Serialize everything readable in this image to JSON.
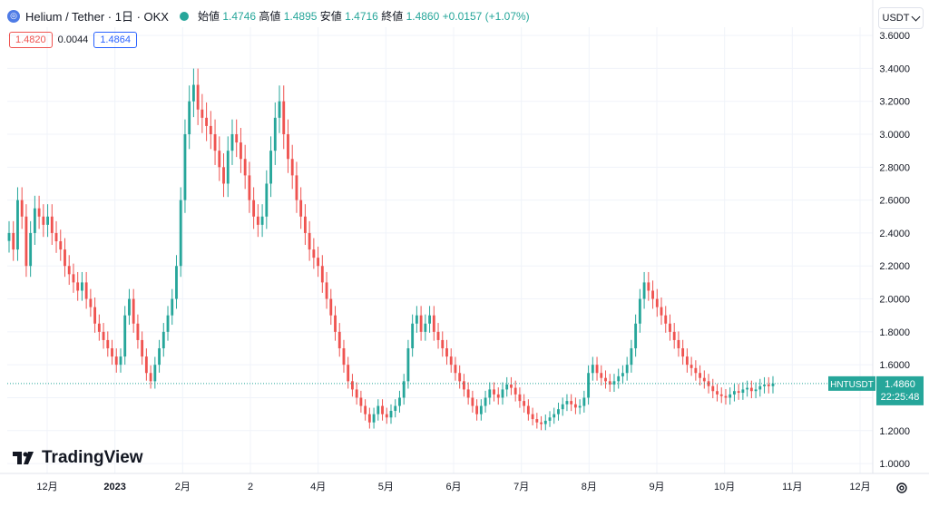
{
  "header": {
    "title": "Helium / Tether · 1日 · OKX",
    "ohlc": {
      "open_label": "始値",
      "open": "1.4746",
      "high_label": "高値",
      "high": "1.4895",
      "low_label": "安値",
      "low": "1.4716",
      "close_label": "終値",
      "close": "1.4860",
      "change": "+0.0157 (+1.07%)"
    }
  },
  "quote": {
    "bid": "1.4820",
    "spread": "0.0044",
    "ask": "1.4864"
  },
  "currency_selector": "USDT",
  "branding": "TradingView",
  "colors": {
    "up": "#26a69a",
    "down": "#ef5350",
    "grid": "#f0f3fa",
    "axis_text": "#131722",
    "price_tag": "#26a69a"
  },
  "chart_data": {
    "type": "candlestick",
    "symbol": "HNTUSDT",
    "last_price": 1.486,
    "countdown": "22:25:48",
    "y_ticks": [
      "1.0000",
      "1.2000",
      "1.4000",
      "1.6000",
      "1.8000",
      "2.0000",
      "2.2000",
      "2.4000",
      "2.6000",
      "2.8000",
      "3.0000",
      "3.2000",
      "3.4000",
      "3.6000"
    ],
    "ylim": [
      0.94,
      3.65
    ],
    "x_ticks": [
      "12月",
      "2023",
      "2月",
      "2",
      "4月",
      "5月",
      "6月",
      "7月",
      "8月",
      "9月",
      "10月",
      "11月",
      "12月"
    ],
    "close_series": [
      2.4,
      2.3,
      2.6,
      2.5,
      2.2,
      2.4,
      2.55,
      2.5,
      2.45,
      2.5,
      2.4,
      2.35,
      2.3,
      2.2,
      2.15,
      2.1,
      2.05,
      2.1,
      2.0,
      1.95,
      1.85,
      1.8,
      1.75,
      1.7,
      1.65,
      1.6,
      1.65,
      1.9,
      2.0,
      1.85,
      1.75,
      1.65,
      1.55,
      1.5,
      1.6,
      1.7,
      1.8,
      1.9,
      2.0,
      2.2,
      2.6,
      3.0,
      3.2,
      3.3,
      3.15,
      3.1,
      3.05,
      3.0,
      2.9,
      2.8,
      2.7,
      2.9,
      3.0,
      2.95,
      2.85,
      2.75,
      2.6,
      2.5,
      2.45,
      2.5,
      2.7,
      2.9,
      3.1,
      3.2,
      3.0,
      2.85,
      2.75,
      2.6,
      2.5,
      2.4,
      2.3,
      2.25,
      2.2,
      2.1,
      2.0,
      1.9,
      1.8,
      1.7,
      1.6,
      1.5,
      1.45,
      1.4,
      1.35,
      1.3,
      1.25,
      1.3,
      1.35,
      1.3,
      1.28,
      1.32,
      1.35,
      1.4,
      1.5,
      1.7,
      1.85,
      1.9,
      1.8,
      1.85,
      1.9,
      1.8,
      1.75,
      1.7,
      1.65,
      1.6,
      1.55,
      1.5,
      1.45,
      1.4,
      1.35,
      1.3,
      1.35,
      1.4,
      1.45,
      1.42,
      1.4,
      1.45,
      1.48,
      1.46,
      1.42,
      1.38,
      1.35,
      1.3,
      1.27,
      1.25,
      1.24,
      1.26,
      1.28,
      1.3,
      1.33,
      1.36,
      1.38,
      1.36,
      1.34,
      1.35,
      1.4,
      1.55,
      1.6,
      1.55,
      1.52,
      1.5,
      1.48,
      1.5,
      1.53,
      1.55,
      1.6,
      1.7,
      1.85,
      2.0,
      2.1,
      2.05,
      2.0,
      1.95,
      1.9,
      1.85,
      1.8,
      1.75,
      1.7,
      1.65,
      1.6,
      1.58,
      1.55,
      1.52,
      1.5,
      1.47,
      1.44,
      1.42,
      1.41,
      1.4,
      1.42,
      1.44,
      1.43,
      1.45,
      1.46,
      1.44,
      1.45,
      1.47,
      1.48,
      1.47,
      1.486
    ]
  }
}
